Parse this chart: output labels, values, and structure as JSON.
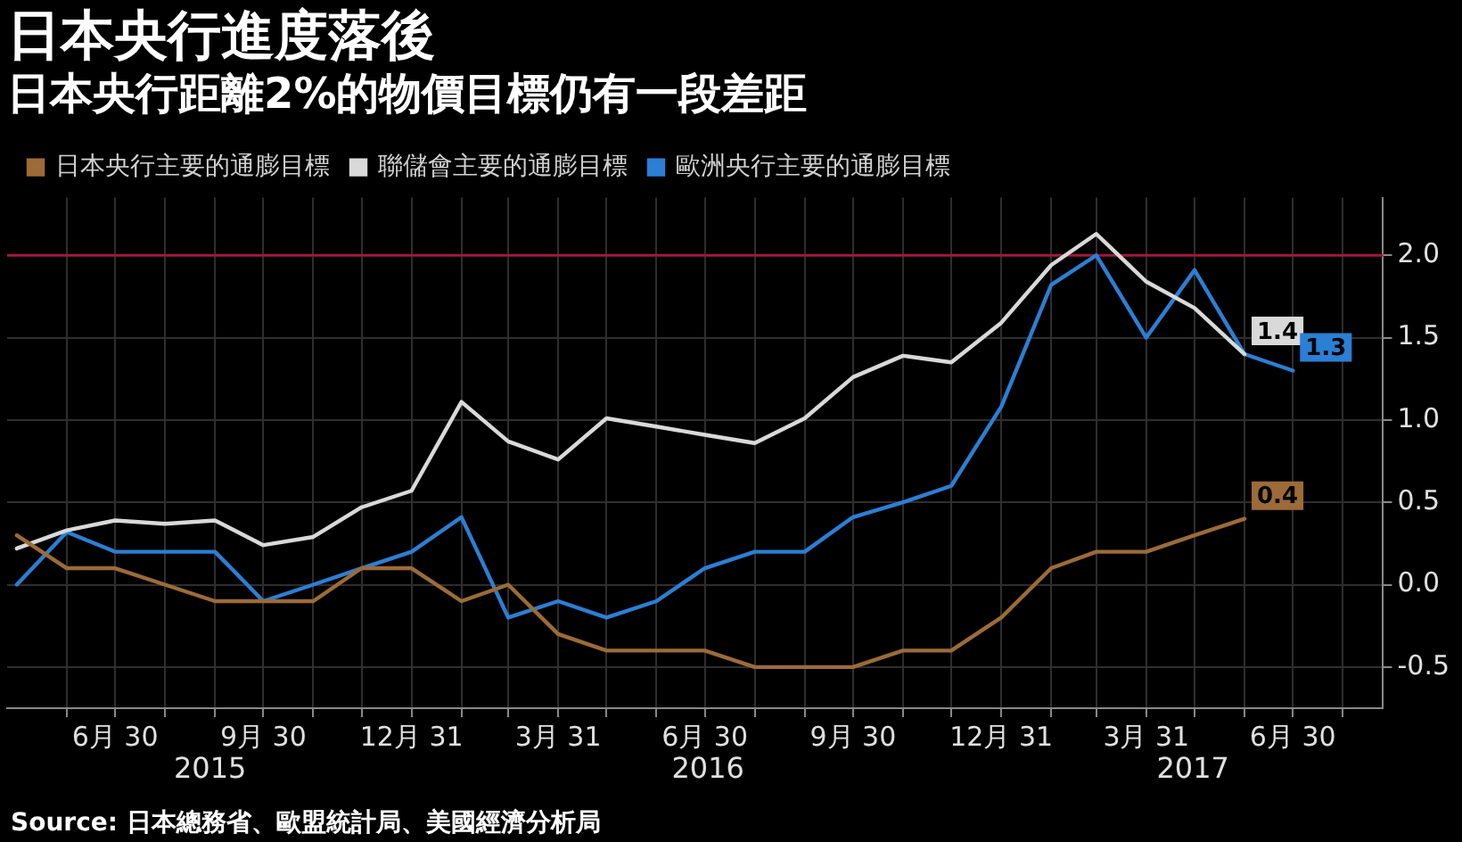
{
  "chart_data": {
    "type": "line",
    "title": "日本央行進度落後",
    "subtitle": "日本央行距離2%的物價目標仍有一段差距",
    "x": [
      "2015-04-30",
      "2015-05-31",
      "2015-06-30",
      "2015-07-31",
      "2015-08-31",
      "2015-09-30",
      "2015-10-31",
      "2015-11-30",
      "2015-12-31",
      "2016-01-31",
      "2016-02-29",
      "2016-03-31",
      "2016-04-30",
      "2016-05-31",
      "2016-06-30",
      "2016-07-31",
      "2016-08-31",
      "2016-09-30",
      "2016-10-31",
      "2016-11-30",
      "2016-12-31",
      "2017-01-31",
      "2017-02-28",
      "2017-03-31",
      "2017-04-30",
      "2017-05-31",
      "2017-06-30"
    ],
    "series": [
      {
        "name": "日本央行主要的通膨目標",
        "color": "#9c6b38",
        "values": [
          0.3,
          0.1,
          0.1,
          0.0,
          -0.1,
          -0.1,
          -0.1,
          0.1,
          0.1,
          -0.1,
          0.0,
          -0.3,
          -0.4,
          -0.4,
          -0.4,
          -0.5,
          -0.5,
          -0.5,
          -0.4,
          -0.4,
          -0.2,
          0.1,
          0.2,
          0.2,
          0.3,
          0.4,
          null
        ],
        "value_labels": [
          null,
          null,
          null,
          null,
          null,
          null,
          null,
          null,
          null,
          null,
          null,
          null,
          null,
          null,
          null,
          null,
          null,
          null,
          null,
          null,
          null,
          null,
          null,
          null,
          null,
          "0.4",
          null
        ]
      },
      {
        "name": "聯儲會主要的通膨目標",
        "color": "#d9d9d9",
        "values": [
          0.22,
          0.33,
          0.39,
          0.37,
          0.39,
          0.24,
          0.29,
          0.47,
          0.57,
          1.11,
          0.87,
          0.76,
          1.01,
          0.96,
          0.91,
          0.86,
          1.01,
          1.26,
          1.39,
          1.35,
          1.59,
          1.94,
          2.13,
          1.84,
          1.68,
          1.4,
          null
        ],
        "value_labels": [
          null,
          null,
          null,
          null,
          null,
          null,
          null,
          null,
          null,
          null,
          null,
          null,
          null,
          null,
          null,
          null,
          null,
          null,
          null,
          null,
          null,
          null,
          null,
          null,
          null,
          "1.4",
          null
        ]
      },
      {
        "name": "歐洲央行主要的通膨目標",
        "color": "#2b7fd4",
        "values": [
          0.0,
          0.32,
          0.2,
          0.2,
          0.2,
          -0.1,
          0.0,
          0.1,
          0.2,
          0.41,
          -0.2,
          -0.1,
          -0.2,
          -0.1,
          0.1,
          0.2,
          0.2,
          0.41,
          0.5,
          0.6,
          1.08,
          1.82,
          2.0,
          1.5,
          1.91,
          1.4,
          1.3
        ],
        "value_labels": [
          null,
          null,
          null,
          null,
          null,
          null,
          null,
          null,
          null,
          null,
          null,
          null,
          null,
          null,
          null,
          null,
          null,
          null,
          null,
          null,
          null,
          null,
          null,
          null,
          null,
          null,
          "1.3"
        ]
      }
    ],
    "xlim": [
      "2015-04-24",
      "2017-08-25"
    ],
    "xticks": [
      {
        "value": "2015-05-31",
        "label": null
      },
      {
        "value": "2015-06-30",
        "label": "6月 30"
      },
      {
        "value": "2015-07-31",
        "label": null
      },
      {
        "value": "2015-08-31",
        "label": null
      },
      {
        "value": "2015-09-30",
        "label": "9月 30"
      },
      {
        "value": "2015-10-31",
        "label": null
      },
      {
        "value": "2015-11-30",
        "label": null
      },
      {
        "value": "2015-12-31",
        "label": "12月 31"
      },
      {
        "value": "2016-01-31",
        "label": null
      },
      {
        "value": "2016-02-29",
        "label": null
      },
      {
        "value": "2016-03-31",
        "label": "3月 31"
      },
      {
        "value": "2016-04-30",
        "label": null
      },
      {
        "value": "2016-05-31",
        "label": null
      },
      {
        "value": "2016-06-30",
        "label": "6月 30"
      },
      {
        "value": "2016-07-31",
        "label": null
      },
      {
        "value": "2016-08-31",
        "label": null
      },
      {
        "value": "2016-09-30",
        "label": "9月 30"
      },
      {
        "value": "2016-10-31",
        "label": null
      },
      {
        "value": "2016-11-30",
        "label": null
      },
      {
        "value": "2016-12-31",
        "label": "12月 31"
      },
      {
        "value": "2017-01-31",
        "label": null
      },
      {
        "value": "2017-02-28",
        "label": null
      },
      {
        "value": "2017-03-31",
        "label": "3月 31"
      },
      {
        "value": "2017-04-30",
        "label": null
      },
      {
        "value": "2017-05-31",
        "label": null
      },
      {
        "value": "2017-06-30",
        "label": "6月 30"
      },
      {
        "value": "2017-07-31",
        "label": null
      }
    ],
    "ylim": [
      -0.75,
      2.35
    ],
    "yticks": [
      {
        "value": -0.5,
        "label": "-0.5"
      },
      {
        "value": 0,
        "label": "0.0"
      },
      {
        "value": 0.5,
        "label": "0.5"
      },
      {
        "value": 1,
        "label": "1.0"
      },
      {
        "value": 1.5,
        "label": "1.5"
      },
      {
        "value": 2,
        "label": "2.0"
      }
    ],
    "ref_lines": [
      {
        "axis": "y",
        "value": 2,
        "color": "#a3173f"
      }
    ],
    "annotations": [
      "2015",
      "2016",
      "2017",
      "Source: 日本總務省、歐盟統計局、美國經濟分析局"
    ],
    "grid": true,
    "legend": "top left",
    "marker": "none",
    "line_style": "solid"
  }
}
